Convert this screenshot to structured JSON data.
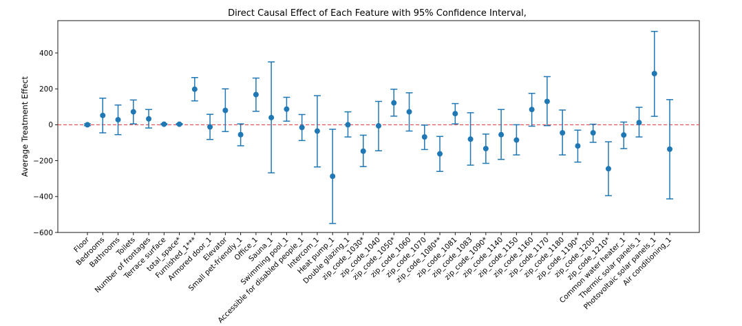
{
  "chart_data": {
    "type": "scatter",
    "title": "Direct Causal Effect of Each Feature with 95% Confidence Interval,",
    "xlabel": "",
    "ylabel": "Average Treatment Effect",
    "ylim": [
      -600,
      580
    ],
    "yticks": [
      -600,
      -400,
      -200,
      0,
      200,
      400
    ],
    "grid": false,
    "reference_line": {
      "y": 0,
      "style": "dashed",
      "color": "#e8484a"
    },
    "colors": {
      "marker": "#1f77b4",
      "errorbar": "#1f77b4"
    },
    "categories": [
      "Floor",
      "Bedrooms",
      "Bathrooms",
      "Toilets",
      "Number of frontages",
      "Terrace surface",
      "total_space*",
      "Furnished_1***",
      "Armored door_1",
      "Elevator",
      "Small pet-friendly_1",
      "Office_1",
      "Sauna_1",
      "Swimming pool_1",
      "Accessible for disabled people_1",
      "Intercom_1",
      "Heat pump_1",
      "Double glazing_1",
      "zip_code_1030*",
      "zip_code_1040",
      "zip_code_1050*",
      "zip_code_1060",
      "zip_code_1070",
      "zip_code_1080**",
      "zip_code_1081",
      "zip_code_1083",
      "zip_code_1090*",
      "zip_code_1140",
      "zip_code_1150",
      "zip_code_1160",
      "zip_code_1170",
      "zip_code_1180",
      "zip_code_1190*",
      "zip_code_1200",
      "zip_code_1210*",
      "Common water heater_1",
      "Thermic solar panels_1",
      "Photovoltaic solar panels_1",
      "Air conditioning_1"
    ],
    "points": [
      {
        "y": 0,
        "lo": -5,
        "hi": 5
      },
      {
        "y": 52,
        "lo": -45,
        "hi": 148
      },
      {
        "y": 28,
        "lo": -55,
        "hi": 110
      },
      {
        "y": 72,
        "lo": 5,
        "hi": 138
      },
      {
        "y": 33,
        "lo": -18,
        "hi": 85
      },
      {
        "y": 3,
        "lo": 0,
        "hi": 6
      },
      {
        "y": 3,
        "lo": 0,
        "hi": 6
      },
      {
        "y": 198,
        "lo": 133,
        "hi": 263
      },
      {
        "y": -12,
        "lo": -82,
        "hi": 58
      },
      {
        "y": 80,
        "lo": -38,
        "hi": 200
      },
      {
        "y": -55,
        "lo": -117,
        "hi": 5
      },
      {
        "y": 168,
        "lo": 75,
        "hi": 260
      },
      {
        "y": 40,
        "lo": -268,
        "hi": 350
      },
      {
        "y": 87,
        "lo": 20,
        "hi": 153
      },
      {
        "y": -15,
        "lo": -88,
        "hi": 57
      },
      {
        "y": -35,
        "lo": -235,
        "hi": 162
      },
      {
        "y": -287,
        "lo": -550,
        "hi": -25
      },
      {
        "y": 0,
        "lo": -68,
        "hi": 72
      },
      {
        "y": -147,
        "lo": -233,
        "hi": -58
      },
      {
        "y": -6,
        "lo": -145,
        "hi": 130
      },
      {
        "y": 122,
        "lo": 48,
        "hi": 198
      },
      {
        "y": 72,
        "lo": -35,
        "hi": 178
      },
      {
        "y": -68,
        "lo": -138,
        "hi": -2
      },
      {
        "y": -162,
        "lo": -260,
        "hi": -65
      },
      {
        "y": 62,
        "lo": 5,
        "hi": 118
      },
      {
        "y": -80,
        "lo": -225,
        "hi": 67
      },
      {
        "y": -133,
        "lo": -215,
        "hi": -52
      },
      {
        "y": -55,
        "lo": -193,
        "hi": 85
      },
      {
        "y": -85,
        "lo": -168,
        "hi": 0
      },
      {
        "y": 85,
        "lo": -8,
        "hi": 175
      },
      {
        "y": 130,
        "lo": -5,
        "hi": 268
      },
      {
        "y": -45,
        "lo": -168,
        "hi": 82
      },
      {
        "y": -118,
        "lo": -208,
        "hi": -30
      },
      {
        "y": -45,
        "lo": -98,
        "hi": 3
      },
      {
        "y": -245,
        "lo": -395,
        "hi": -95
      },
      {
        "y": -57,
        "lo": -133,
        "hi": 15
      },
      {
        "y": 12,
        "lo": -68,
        "hi": 97
      },
      {
        "y": 285,
        "lo": 47,
        "hi": 520
      },
      {
        "y": -136,
        "lo": -413,
        "hi": 140
      }
    ]
  }
}
